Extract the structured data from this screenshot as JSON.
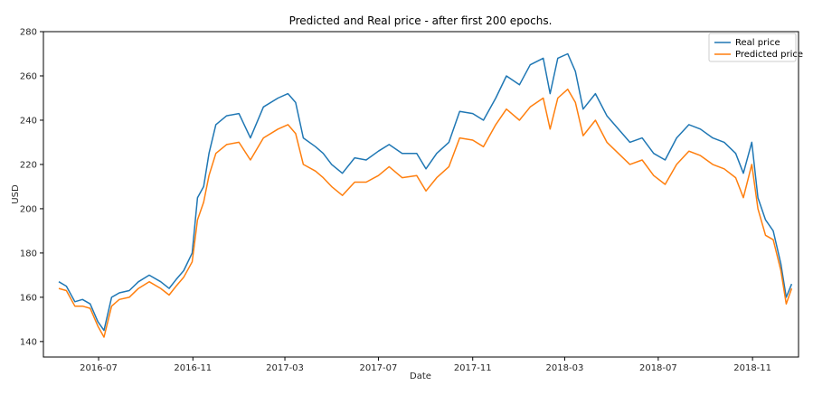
{
  "chart_data": {
    "type": "line",
    "title": "Predicted and Real price - after first 200 epochs.",
    "xlabel": "Date",
    "ylabel": "USD",
    "ylim": [
      133,
      280
    ],
    "yticks": [
      140,
      160,
      180,
      200,
      220,
      240,
      260,
      280
    ],
    "ytick_labels": [
      "140",
      "160",
      "180",
      "200",
      "220",
      "240",
      "260",
      "280"
    ],
    "xlim": [
      "2016-04-20",
      "2018-12-31"
    ],
    "xticks": [
      "2016-07-01",
      "2016-11-01",
      "2017-03-01",
      "2017-07-01",
      "2017-11-01",
      "2018-03-01",
      "2018-07-01",
      "2018-11-01"
    ],
    "xtick_labels": [
      "2016-07",
      "2016-11",
      "2017-03",
      "2017-07",
      "2017-11",
      "2018-03",
      "2018-07",
      "2018-11"
    ],
    "legend_position": "top-right",
    "series": [
      {
        "name": "Real price",
        "color": "#1f77b4",
        "points": [
          [
            "2016-05-10",
            167
          ],
          [
            "2016-05-20",
            165
          ],
          [
            "2016-05-31",
            158
          ],
          [
            "2016-06-10",
            159
          ],
          [
            "2016-06-20",
            157
          ],
          [
            "2016-06-30",
            149
          ],
          [
            "2016-07-08",
            145
          ],
          [
            "2016-07-18",
            160
          ],
          [
            "2016-07-28",
            162
          ],
          [
            "2016-08-10",
            163
          ],
          [
            "2016-08-22",
            167
          ],
          [
            "2016-09-05",
            170
          ],
          [
            "2016-09-20",
            167
          ],
          [
            "2016-10-01",
            164
          ],
          [
            "2016-10-10",
            168
          ],
          [
            "2016-10-20",
            172
          ],
          [
            "2016-10-31",
            180
          ],
          [
            "2016-11-07",
            205
          ],
          [
            "2016-11-15",
            210
          ],
          [
            "2016-11-22",
            225
          ],
          [
            "2016-12-01",
            238
          ],
          [
            "2016-12-15",
            242
          ],
          [
            "2016-12-31",
            243
          ],
          [
            "2017-01-15",
            232
          ],
          [
            "2017-02-01",
            246
          ],
          [
            "2017-02-20",
            250
          ],
          [
            "2017-03-05",
            252
          ],
          [
            "2017-03-15",
            248
          ],
          [
            "2017-03-25",
            232
          ],
          [
            "2017-04-10",
            228
          ],
          [
            "2017-04-20",
            225
          ],
          [
            "2017-05-01",
            220
          ],
          [
            "2017-05-15",
            216
          ],
          [
            "2017-05-31",
            223
          ],
          [
            "2017-06-15",
            222
          ],
          [
            "2017-07-01",
            226
          ],
          [
            "2017-07-15",
            229
          ],
          [
            "2017-08-01",
            225
          ],
          [
            "2017-08-20",
            225
          ],
          [
            "2017-09-01",
            218
          ],
          [
            "2017-09-15",
            225
          ],
          [
            "2017-10-01",
            230
          ],
          [
            "2017-10-15",
            244
          ],
          [
            "2017-11-01",
            243
          ],
          [
            "2017-11-15",
            240
          ],
          [
            "2017-12-01",
            250
          ],
          [
            "2017-12-15",
            260
          ],
          [
            "2018-01-01",
            256
          ],
          [
            "2018-01-15",
            265
          ],
          [
            "2018-02-01",
            268
          ],
          [
            "2018-02-10",
            252
          ],
          [
            "2018-02-20",
            268
          ],
          [
            "2018-03-05",
            270
          ],
          [
            "2018-03-15",
            262
          ],
          [
            "2018-03-25",
            245
          ],
          [
            "2018-04-10",
            252
          ],
          [
            "2018-04-25",
            242
          ],
          [
            "2018-05-10",
            236
          ],
          [
            "2018-05-25",
            230
          ],
          [
            "2018-06-10",
            232
          ],
          [
            "2018-06-25",
            225
          ],
          [
            "2018-07-10",
            222
          ],
          [
            "2018-07-25",
            232
          ],
          [
            "2018-08-10",
            238
          ],
          [
            "2018-08-25",
            236
          ],
          [
            "2018-09-10",
            232
          ],
          [
            "2018-09-25",
            230
          ],
          [
            "2018-10-10",
            225
          ],
          [
            "2018-10-20",
            216
          ],
          [
            "2018-10-31",
            230
          ],
          [
            "2018-11-08",
            205
          ],
          [
            "2018-11-18",
            195
          ],
          [
            "2018-11-28",
            190
          ],
          [
            "2018-12-08",
            175
          ],
          [
            "2018-12-15",
            160
          ],
          [
            "2018-12-22",
            166
          ]
        ]
      },
      {
        "name": "Predicted price",
        "color": "#ff7f0e",
        "points": [
          [
            "2016-05-10",
            164
          ],
          [
            "2016-05-20",
            163
          ],
          [
            "2016-05-31",
            156
          ],
          [
            "2016-06-10",
            156
          ],
          [
            "2016-06-20",
            155
          ],
          [
            "2016-06-30",
            147
          ],
          [
            "2016-07-08",
            142
          ],
          [
            "2016-07-18",
            156
          ],
          [
            "2016-07-28",
            159
          ],
          [
            "2016-08-10",
            160
          ],
          [
            "2016-08-22",
            164
          ],
          [
            "2016-09-05",
            167
          ],
          [
            "2016-09-20",
            164
          ],
          [
            "2016-10-01",
            161
          ],
          [
            "2016-10-10",
            165
          ],
          [
            "2016-10-20",
            169
          ],
          [
            "2016-10-31",
            176
          ],
          [
            "2016-11-07",
            195
          ],
          [
            "2016-11-15",
            203
          ],
          [
            "2016-11-22",
            215
          ],
          [
            "2016-12-01",
            225
          ],
          [
            "2016-12-15",
            229
          ],
          [
            "2016-12-31",
            230
          ],
          [
            "2017-01-15",
            222
          ],
          [
            "2017-02-01",
            232
          ],
          [
            "2017-02-20",
            236
          ],
          [
            "2017-03-05",
            238
          ],
          [
            "2017-03-15",
            234
          ],
          [
            "2017-03-25",
            220
          ],
          [
            "2017-04-10",
            217
          ],
          [
            "2017-04-20",
            214
          ],
          [
            "2017-05-01",
            210
          ],
          [
            "2017-05-15",
            206
          ],
          [
            "2017-05-31",
            212
          ],
          [
            "2017-06-15",
            212
          ],
          [
            "2017-07-01",
            215
          ],
          [
            "2017-07-15",
            219
          ],
          [
            "2017-08-01",
            214
          ],
          [
            "2017-08-20",
            215
          ],
          [
            "2017-09-01",
            208
          ],
          [
            "2017-09-15",
            214
          ],
          [
            "2017-10-01",
            219
          ],
          [
            "2017-10-15",
            232
          ],
          [
            "2017-11-01",
            231
          ],
          [
            "2017-11-15",
            228
          ],
          [
            "2017-12-01",
            238
          ],
          [
            "2017-12-15",
            245
          ],
          [
            "2018-01-01",
            240
          ],
          [
            "2018-01-15",
            246
          ],
          [
            "2018-02-01",
            250
          ],
          [
            "2018-02-10",
            236
          ],
          [
            "2018-02-20",
            250
          ],
          [
            "2018-03-05",
            254
          ],
          [
            "2018-03-15",
            248
          ],
          [
            "2018-03-25",
            233
          ],
          [
            "2018-04-10",
            240
          ],
          [
            "2018-04-25",
            230
          ],
          [
            "2018-05-10",
            225
          ],
          [
            "2018-05-25",
            220
          ],
          [
            "2018-06-10",
            222
          ],
          [
            "2018-06-25",
            215
          ],
          [
            "2018-07-10",
            211
          ],
          [
            "2018-07-25",
            220
          ],
          [
            "2018-08-10",
            226
          ],
          [
            "2018-08-25",
            224
          ],
          [
            "2018-09-10",
            220
          ],
          [
            "2018-09-25",
            218
          ],
          [
            "2018-10-10",
            214
          ],
          [
            "2018-10-20",
            205
          ],
          [
            "2018-10-31",
            220
          ],
          [
            "2018-11-08",
            200
          ],
          [
            "2018-11-18",
            188
          ],
          [
            "2018-11-28",
            186
          ],
          [
            "2018-12-08",
            172
          ],
          [
            "2018-12-15",
            157
          ],
          [
            "2018-12-22",
            164
          ]
        ]
      }
    ]
  }
}
